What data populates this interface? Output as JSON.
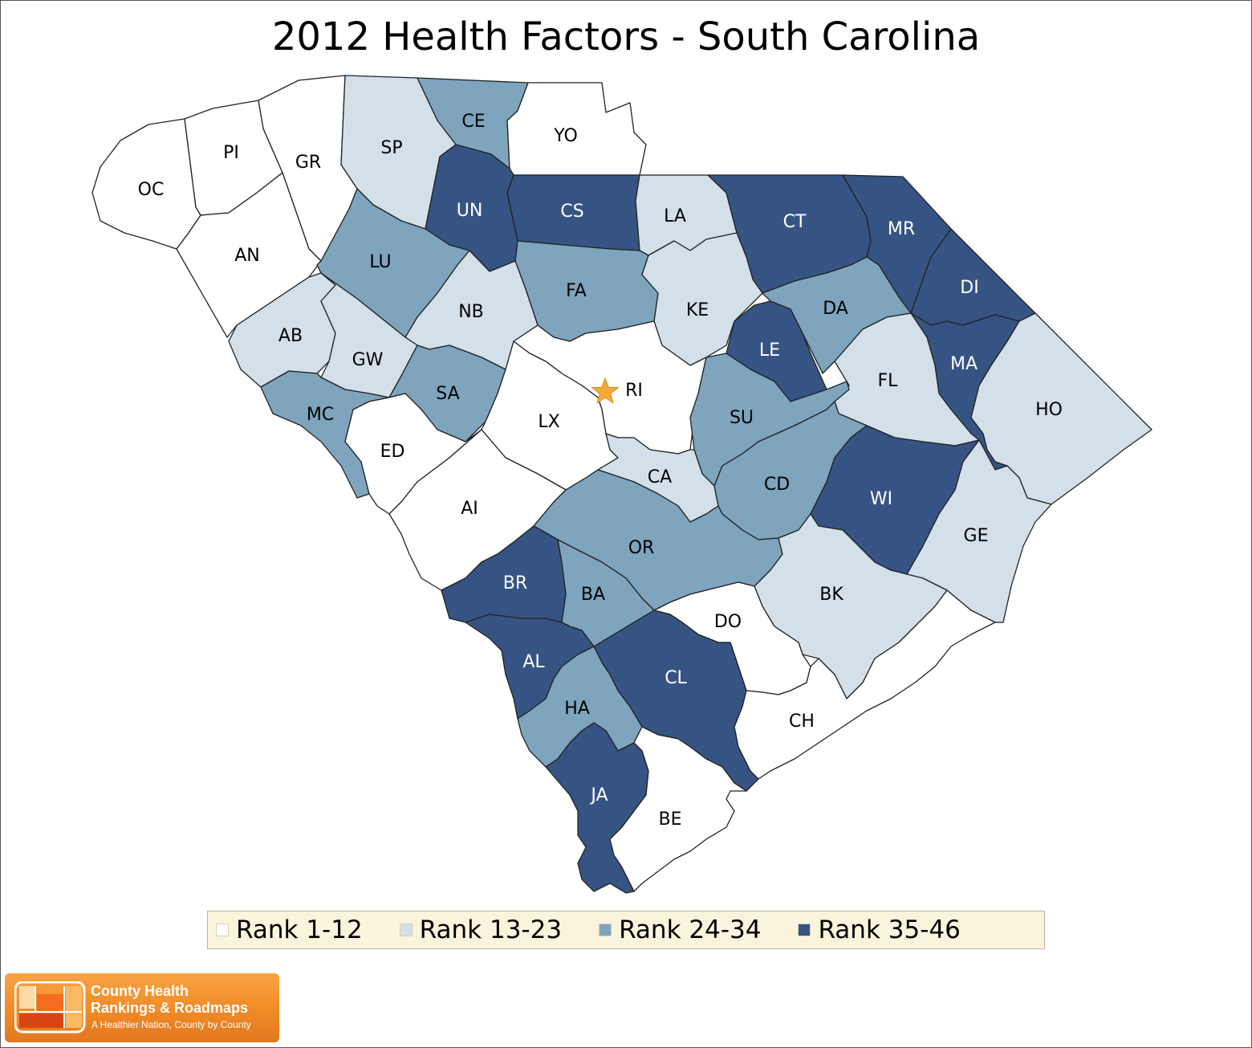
{
  "title": "2012 Health Factors - South Carolina",
  "colors": {
    "rank_1_12": "#ffffff",
    "rank_13_23": "#d3e0e9",
    "rank_24_34": "#7ea4be",
    "rank_35_46": "#365483",
    "capital_star": "#f5a93a"
  },
  "legend": [
    {
      "label": "Rank 1-12",
      "color": "#ffffff"
    },
    {
      "label": "Rank 13-23",
      "color": "#d3e0e9"
    },
    {
      "label": "Rank 24-34",
      "color": "#7ea4be"
    },
    {
      "label": "Rank 35-46",
      "color": "#365483"
    }
  ],
  "capital": {
    "label": "RI",
    "icon": "star-icon"
  },
  "counties": [
    {
      "code": "OC",
      "rank_group": "Rank 1-12"
    },
    {
      "code": "PI",
      "rank_group": "Rank 1-12"
    },
    {
      "code": "GR",
      "rank_group": "Rank 1-12"
    },
    {
      "code": "AN",
      "rank_group": "Rank 1-12"
    },
    {
      "code": "SP",
      "rank_group": "Rank 13-23"
    },
    {
      "code": "CE",
      "rank_group": "Rank 24-34"
    },
    {
      "code": "YO",
      "rank_group": "Rank 1-12"
    },
    {
      "code": "UN",
      "rank_group": "Rank 35-46"
    },
    {
      "code": "CS",
      "rank_group": "Rank 35-46"
    },
    {
      "code": "LA",
      "rank_group": "Rank 13-23"
    },
    {
      "code": "CT",
      "rank_group": "Rank 35-46"
    },
    {
      "code": "MR",
      "rank_group": "Rank 35-46"
    },
    {
      "code": "LU",
      "rank_group": "Rank 24-34"
    },
    {
      "code": "FA",
      "rank_group": "Rank 24-34"
    },
    {
      "code": "KE",
      "rank_group": "Rank 13-23"
    },
    {
      "code": "DI",
      "rank_group": "Rank 35-46"
    },
    {
      "code": "DA",
      "rank_group": "Rank 24-34"
    },
    {
      "code": "NB",
      "rank_group": "Rank 13-23"
    },
    {
      "code": "AB",
      "rank_group": "Rank 13-23"
    },
    {
      "code": "LE",
      "rank_group": "Rank 35-46"
    },
    {
      "code": "GW",
      "rank_group": "Rank 13-23"
    },
    {
      "code": "MA",
      "rank_group": "Rank 35-46"
    },
    {
      "code": "FL",
      "rank_group": "Rank 13-23"
    },
    {
      "code": "SA",
      "rank_group": "Rank 24-34"
    },
    {
      "code": "RI",
      "rank_group": "Rank 1-12"
    },
    {
      "code": "MC",
      "rank_group": "Rank 24-34"
    },
    {
      "code": "LX",
      "rank_group": "Rank 1-12"
    },
    {
      "code": "SU",
      "rank_group": "Rank 24-34"
    },
    {
      "code": "HO",
      "rank_group": "Rank 13-23"
    },
    {
      "code": "ED",
      "rank_group": "Rank 1-12"
    },
    {
      "code": "CA",
      "rank_group": "Rank 13-23"
    },
    {
      "code": "CD",
      "rank_group": "Rank 24-34"
    },
    {
      "code": "WI",
      "rank_group": "Rank 35-46"
    },
    {
      "code": "AI",
      "rank_group": "Rank 1-12"
    },
    {
      "code": "GE",
      "rank_group": "Rank 13-23"
    },
    {
      "code": "OR",
      "rank_group": "Rank 24-34"
    },
    {
      "code": "BR",
      "rank_group": "Rank 35-46"
    },
    {
      "code": "BA",
      "rank_group": "Rank 24-34"
    },
    {
      "code": "BK",
      "rank_group": "Rank 13-23"
    },
    {
      "code": "DO",
      "rank_group": "Rank 1-12"
    },
    {
      "code": "AL",
      "rank_group": "Rank 35-46"
    },
    {
      "code": "CL",
      "rank_group": "Rank 35-46"
    },
    {
      "code": "HA",
      "rank_group": "Rank 24-34"
    },
    {
      "code": "CH",
      "rank_group": "Rank 1-12"
    },
    {
      "code": "JA",
      "rank_group": "Rank 35-46"
    },
    {
      "code": "BE",
      "rank_group": "Rank 1-12"
    }
  ],
  "logo": {
    "line1": "County Health",
    "line2": "Rankings & Roadmaps",
    "tagline": "A Healthier Nation, County by County"
  }
}
